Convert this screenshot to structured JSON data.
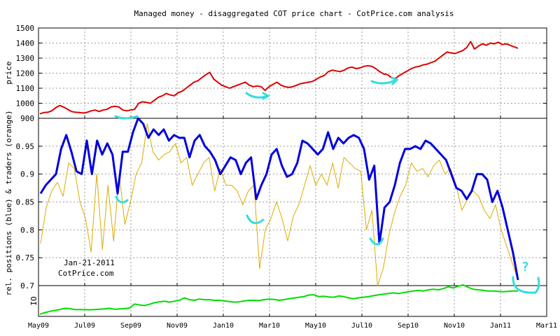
{
  "chart_data": {
    "title": "Managed money - disaggregated COT price chart - CotPrice.com analysis",
    "type": "line",
    "x_tick_labels": [
      "May09",
      "Jul09",
      "Sep09",
      "Nov09",
      "Jan10",
      "Mar10",
      "May10",
      "Jul10",
      "Sep10",
      "Nov10",
      "Jan11",
      "Mar11"
    ],
    "annotation_date": "Jan-21-2011",
    "annotation_site": "CotPrice.com",
    "annotation_question": "?",
    "colors": {
      "price": "#dd0000",
      "positions": "#0000dd",
      "traders": "#ddaa00",
      "oi": "#00dd00",
      "marker": "#33dddd",
      "grid": "#999999"
    },
    "panels": [
      {
        "id": "price",
        "ylabel": "price",
        "ylim": [
          900,
          1500
        ],
        "yticks": [
          "900",
          "1000",
          "1100",
          "1200",
          "1300",
          "1400",
          "1500"
        ],
        "series": [
          {
            "values": [
              930,
              938,
              940,
              950,
              970,
              985,
              975,
              960,
              945,
              940,
              938,
              935,
              940,
              950,
              955,
              945,
              955,
              960,
              975,
              980,
              975,
              955,
              950,
              955,
              960,
              1000,
              1010,
              1005,
              1000,
              1020,
              1040,
              1050,
              1065,
              1055,
              1050,
              1070,
              1080,
              1100,
              1120,
              1140,
              1150,
              1170,
              1190,
              1205,
              1160,
              1140,
              1120,
              1110,
              1100,
              1110,
              1120,
              1130,
              1140,
              1120,
              1110,
              1115,
              1110,
              1085,
              1110,
              1125,
              1140,
              1120,
              1110,
              1105,
              1110,
              1120,
              1130,
              1135,
              1140,
              1145,
              1160,
              1175,
              1185,
              1210,
              1220,
              1215,
              1210,
              1220,
              1235,
              1240,
              1230,
              1235,
              1245,
              1250,
              1245,
              1230,
              1210,
              1195,
              1190,
              1170,
              1165,
              1185,
              1200,
              1215,
              1230,
              1240,
              1245,
              1255,
              1260,
              1270,
              1280,
              1300,
              1320,
              1340,
              1335,
              1330,
              1340,
              1350,
              1370,
              1410,
              1360,
              1380,
              1395,
              1385,
              1400,
              1395,
              1405,
              1390,
              1395,
              1385,
              1375,
              1365
            ]
          }
        ]
      },
      {
        "id": "cot",
        "ylabel": "rel. positions (blue) & traders (orange)",
        "ylim": [
          0.7,
          1.0
        ],
        "yticks": [
          "0.7",
          "0.75",
          "0.8",
          "0.85",
          "0.9",
          "0.95"
        ],
        "series": [
          {
            "values": [
              0.865,
              0.88,
              0.89,
              0.9,
              0.945,
              0.97,
              0.94,
              0.905,
              0.9,
              0.96,
              0.9,
              0.96,
              0.935,
              0.955,
              0.935,
              0.865,
              0.94,
              0.94,
              0.975,
              1.0,
              0.99,
              0.965,
              0.98,
              0.97,
              0.98,
              0.96,
              0.97,
              0.965,
              0.965,
              0.93,
              0.96,
              0.97,
              0.95,
              0.94,
              0.925,
              0.9,
              0.915,
              0.93,
              0.925,
              0.9,
              0.92,
              0.93,
              0.855,
              0.88,
              0.9,
              0.935,
              0.945,
              0.915,
              0.895,
              0.9,
              0.92,
              0.96,
              0.955,
              0.945,
              0.935,
              0.945,
              0.975,
              0.945,
              0.965,
              0.955,
              0.965,
              0.97,
              0.965,
              0.945,
              0.89,
              0.915,
              0.775,
              0.84,
              0.85,
              0.88,
              0.92,
              0.945,
              0.945,
              0.95,
              0.945,
              0.96,
              0.955,
              0.945,
              0.935,
              0.925,
              0.9,
              0.875,
              0.87,
              0.855,
              0.87,
              0.9,
              0.9,
              0.89,
              0.85,
              0.87,
              0.84,
              0.8,
              0.76,
              0.71
            ]
          },
          {
            "values": [
              0.775,
              0.84,
              0.87,
              0.885,
              0.86,
              0.92,
              0.91,
              0.85,
              0.82,
              0.76,
              0.9,
              0.765,
              0.88,
              0.78,
              0.9,
              0.81,
              0.85,
              0.9,
              0.92,
              0.99,
              0.94,
              0.925,
              0.935,
              0.94,
              0.955,
              0.92,
              0.93,
              0.88,
              0.9,
              0.92,
              0.93,
              0.87,
              0.91,
              0.88,
              0.88,
              0.87,
              0.845,
              0.87,
              0.88,
              0.73,
              0.8,
              0.82,
              0.85,
              0.82,
              0.78,
              0.825,
              0.845,
              0.88,
              0.915,
              0.88,
              0.9,
              0.88,
              0.92,
              0.875,
              0.93,
              0.92,
              0.91,
              0.905,
              0.8,
              0.835,
              0.7,
              0.73,
              0.79,
              0.83,
              0.86,
              0.88,
              0.92,
              0.905,
              0.91,
              0.895,
              0.915,
              0.925,
              0.9,
              0.91,
              0.88,
              0.835,
              0.855,
              0.87,
              0.86,
              0.835,
              0.82,
              0.845,
              0.8,
              0.77,
              0.74,
              0.71
            ]
          }
        ]
      },
      {
        "id": "oi",
        "ylabel": "OI",
        "series": [
          {
            "values": [
              0.05,
              0.1,
              0.14,
              0.17,
              0.2,
              0.24,
              0.23,
              0.2,
              0.2,
              0.2,
              0.19,
              0.2,
              0.21,
              0.22,
              0.24,
              0.21,
              0.22,
              0.23,
              0.25,
              0.38,
              0.35,
              0.33,
              0.37,
              0.42,
              0.45,
              0.47,
              0.44,
              0.47,
              0.5,
              0.58,
              0.52,
              0.5,
              0.54,
              0.52,
              0.52,
              0.5,
              0.5,
              0.48,
              0.46,
              0.44,
              0.45,
              0.48,
              0.5,
              0.5,
              0.49,
              0.52,
              0.54,
              0.53,
              0.5,
              0.52,
              0.55,
              0.57,
              0.6,
              0.62,
              0.67,
              0.68,
              0.62,
              0.63,
              0.61,
              0.6,
              0.64,
              0.62,
              0.58,
              0.55,
              0.58,
              0.6,
              0.62,
              0.65,
              0.68,
              0.7,
              0.72,
              0.74,
              0.72,
              0.75,
              0.78,
              0.8,
              0.82,
              0.8,
              0.84,
              0.86,
              0.84,
              0.88,
              0.94,
              0.9,
              0.96,
              1.0,
              0.92,
              0.86,
              0.84,
              0.82,
              0.8,
              0.8,
              0.79,
              0.78,
              0.79,
              0.8,
              0.8
            ]
          }
        ]
      }
    ]
  }
}
